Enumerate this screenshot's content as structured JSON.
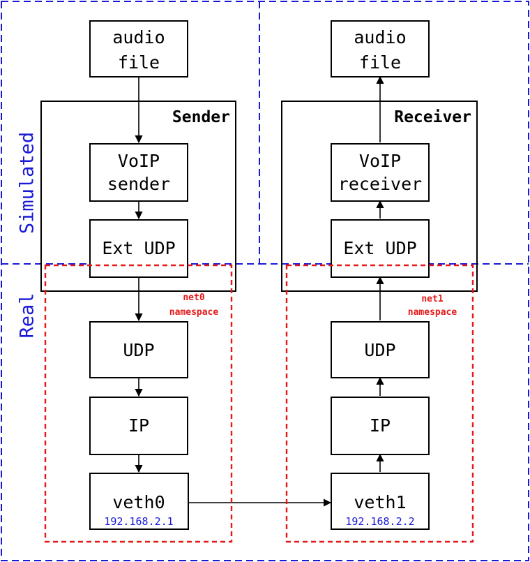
{
  "colors": {
    "region_border": "#1a1ad6",
    "namespace_border": "#e61919",
    "ip_text": "#1a1ad6",
    "box_stroke": "#000000"
  },
  "regions": {
    "simulated": "Simulated",
    "real": "Real"
  },
  "sender": {
    "title": "Sender",
    "audio_file": [
      "audio",
      "file"
    ],
    "voip": [
      "VoIP",
      "sender"
    ],
    "ext_udp": "Ext UDP",
    "udp": "UDP",
    "ip": "IP",
    "veth": "veth0",
    "ip_address": "192.168.2.1",
    "namespace": [
      "net0",
      "namespace"
    ]
  },
  "receiver": {
    "title": "Receiver",
    "audio_file": [
      "audio",
      "file"
    ],
    "voip": [
      "VoIP",
      "receiver"
    ],
    "ext_udp": "Ext UDP",
    "udp": "UDP",
    "ip": "IP",
    "veth": "veth1",
    "ip_address": "192.168.2.2",
    "namespace": [
      "net1",
      "namespace"
    ]
  }
}
